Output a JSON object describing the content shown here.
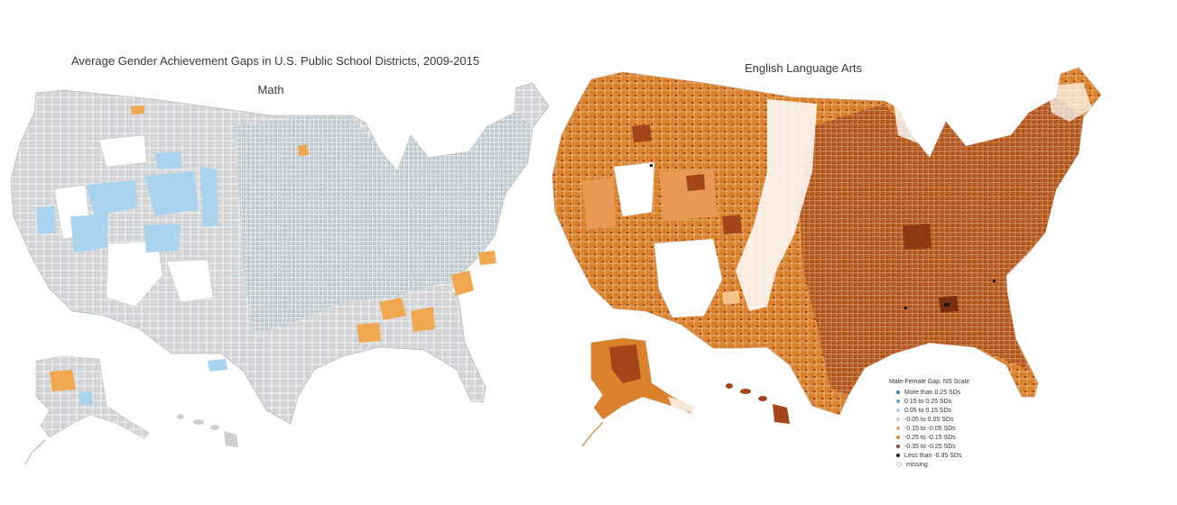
{
  "title": "Average Gender Achievement Gaps in U.S. Public School Districts, 2009-2015",
  "panels": [
    {
      "subtitle": "Math"
    },
    {
      "subtitle": "English Language Arts"
    }
  ],
  "legend": {
    "title": "Male-Female Gap, NS Scale",
    "items": [
      {
        "label": "More than 0.25 SDs",
        "color": "#2f7fc1"
      },
      {
        "label": "0.15 to 0.25 SDs",
        "color": "#5aa6db"
      },
      {
        "label": "0.05 to 0.15 SDs",
        "color": "#a9d3ee"
      },
      {
        "label": "-0.05 to 0.05 SDs",
        "color": "#cfcfcf"
      },
      {
        "label": "-0.15 to -0.05 SDs",
        "color": "#f0a850"
      },
      {
        "label": "-0.25 to -0.15 SDs",
        "color": "#d9822b"
      },
      {
        "label": "-0.35 to -0.25 SDs",
        "color": "#a5461a"
      },
      {
        "label": "Less than -0.35 SDs",
        "color": "#1a1a1a"
      },
      {
        "label": "missing",
        "color": "#ffffff"
      }
    ]
  }
}
